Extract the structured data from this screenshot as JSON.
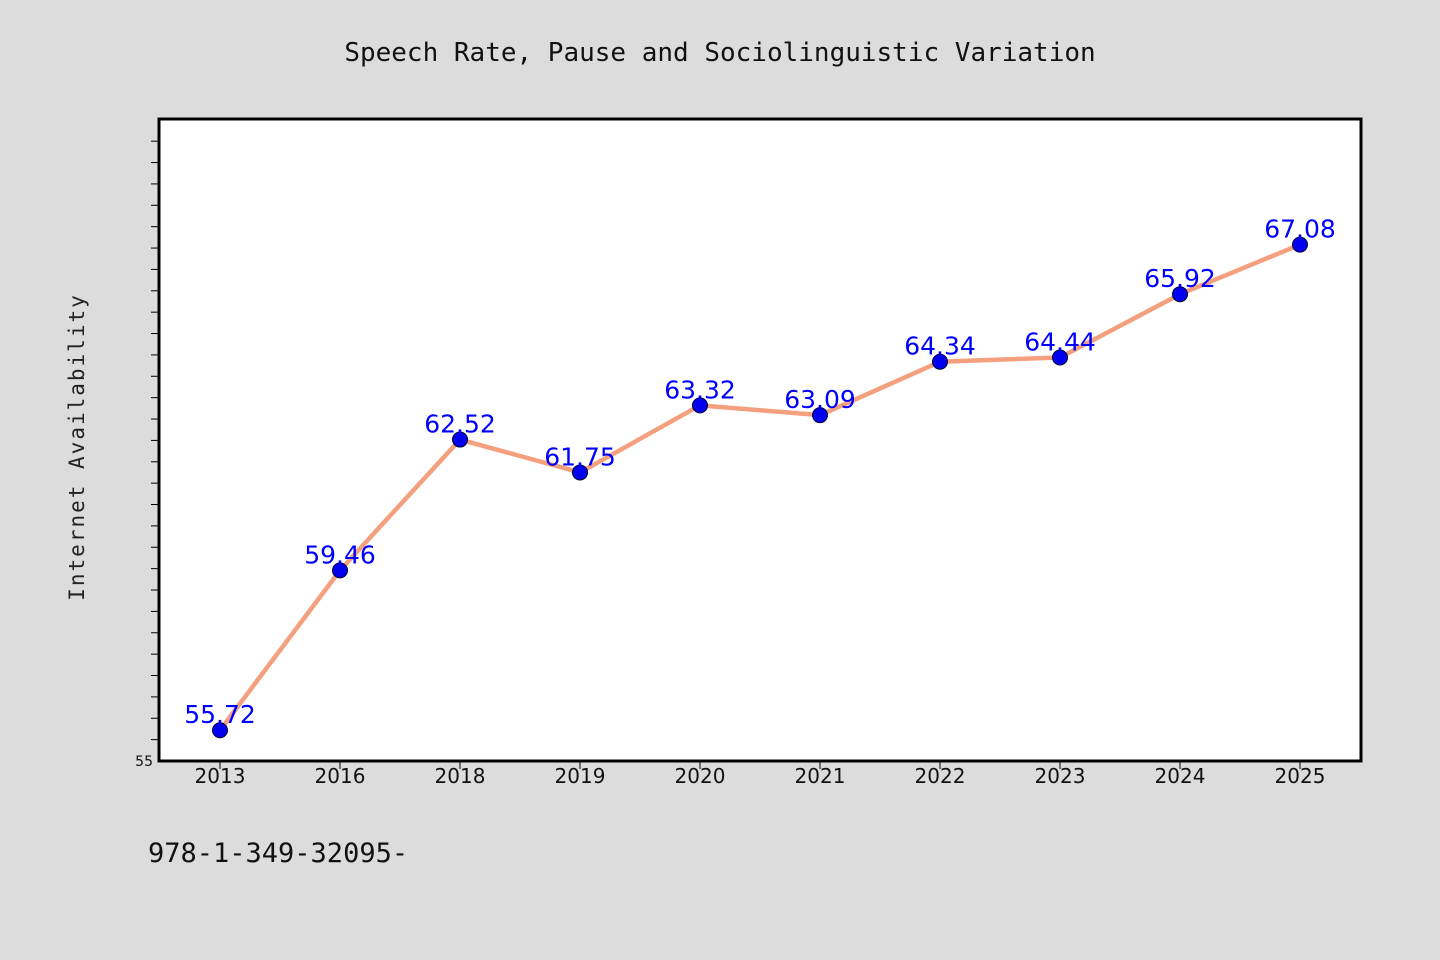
{
  "chart_data": {
    "type": "line",
    "title": "Speech Rate, Pause and Sociolinguistic Variation",
    "xlabel": "",
    "ylabel": "Internet Availability",
    "categories": [
      "2013",
      "2016",
      "2018",
      "2019",
      "2020",
      "2021",
      "2022",
      "2023",
      "2024",
      "2025"
    ],
    "series": [
      {
        "values": [
          55.72,
          59.46,
          62.52,
          61.75,
          63.32,
          63.09,
          64.34,
          64.44,
          65.92,
          67.08
        ],
        "data_labels": [
          "55.72",
          "59.46",
          "62.52",
          "61.75",
          "63.32",
          "63.09",
          "64.34",
          "64.44",
          "65.92",
          "67.08"
        ]
      }
    ],
    "ylim": [
      55,
      70
    ],
    "y_tick_labels": [
      "55"
    ],
    "grid": false,
    "legend": "none",
    "colors": {
      "line": "#f4a07e",
      "marker": "#0000ee",
      "data_label": "#0000ff",
      "plot_background": "#ffffff",
      "figure_background": "#dcdcdc"
    }
  },
  "footer": {
    "text": "978-1-349-32095-"
  }
}
